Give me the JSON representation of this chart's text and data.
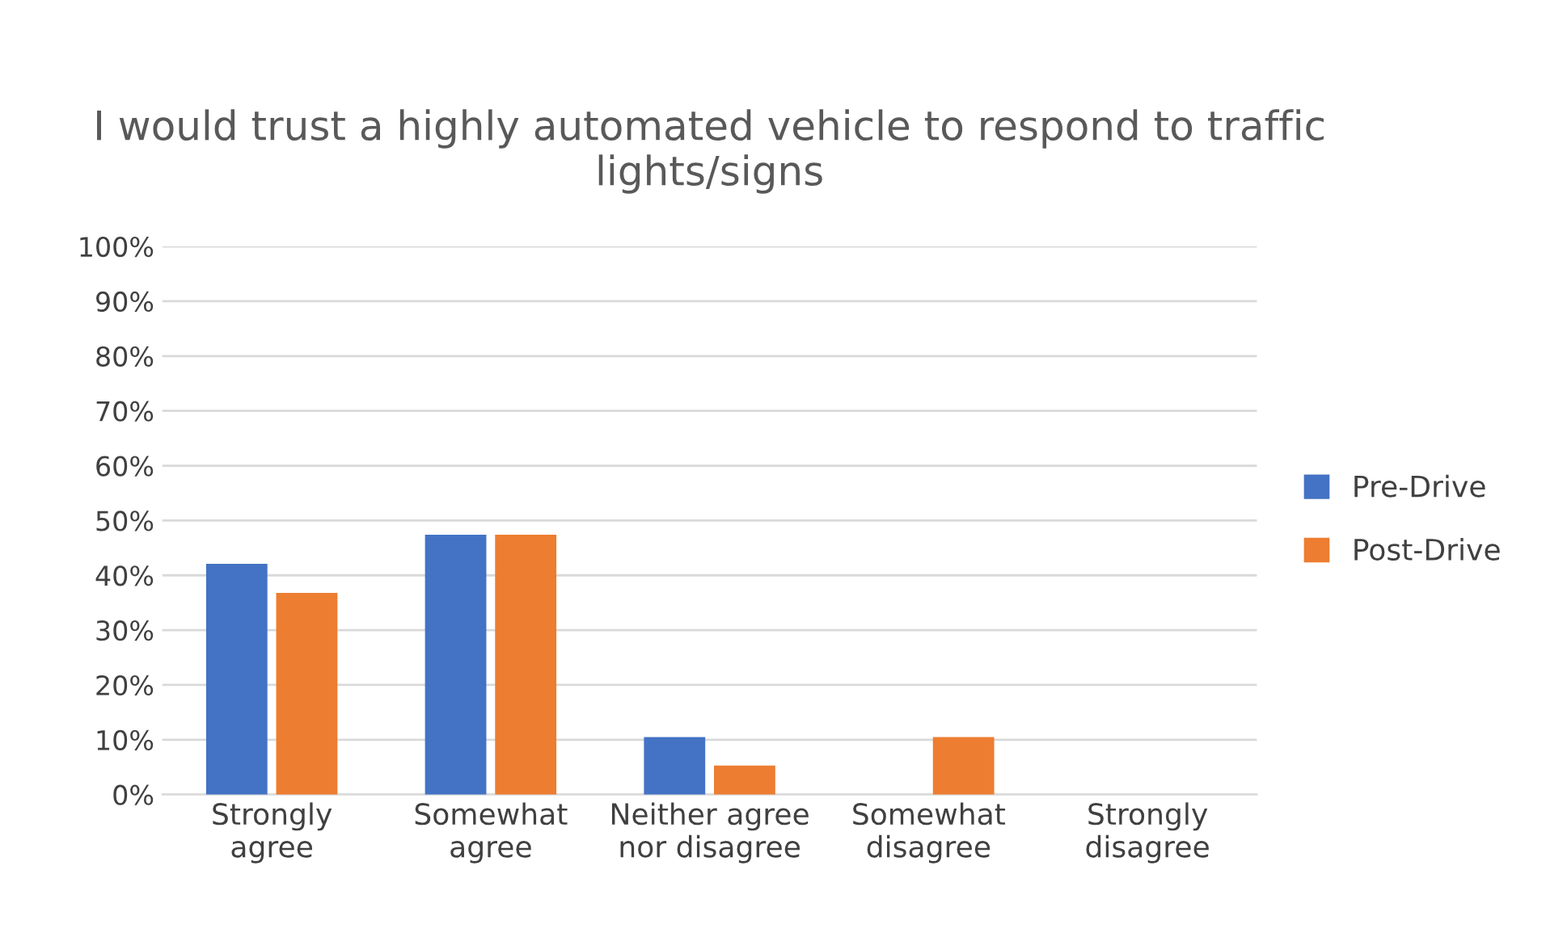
{
  "chart_data": {
    "type": "bar",
    "title": "I would trust a highly automated vehicle to respond to traffic lights/signs",
    "categories": [
      "Strongly\nagree",
      "Somewhat\nagree",
      "Neither agree\nnor disagree",
      "Somewhat\ndisagree",
      "Strongly\ndisagree"
    ],
    "series": [
      {
        "name": "Pre-Drive",
        "color": "#4472c4",
        "values": [
          42.1,
          47.4,
          10.5,
          0,
          0
        ]
      },
      {
        "name": "Post-Drive",
        "color": "#ed7d31",
        "values": [
          36.8,
          47.4,
          5.3,
          10.5,
          0
        ]
      }
    ],
    "ylim": [
      0,
      100
    ],
    "yticks": [
      {
        "value": 0,
        "label": "0%"
      },
      {
        "value": 10,
        "label": "10%"
      },
      {
        "value": 20,
        "label": "20%"
      },
      {
        "value": 30,
        "label": "30%"
      },
      {
        "value": 40,
        "label": "40%"
      },
      {
        "value": 50,
        "label": "50%"
      },
      {
        "value": 60,
        "label": "60%"
      },
      {
        "value": 70,
        "label": "70%"
      },
      {
        "value": 80,
        "label": "80%"
      },
      {
        "value": 90,
        "label": "90%"
      },
      {
        "value": 100,
        "label": "100%"
      }
    ],
    "grid": "y",
    "legend": "right"
  }
}
